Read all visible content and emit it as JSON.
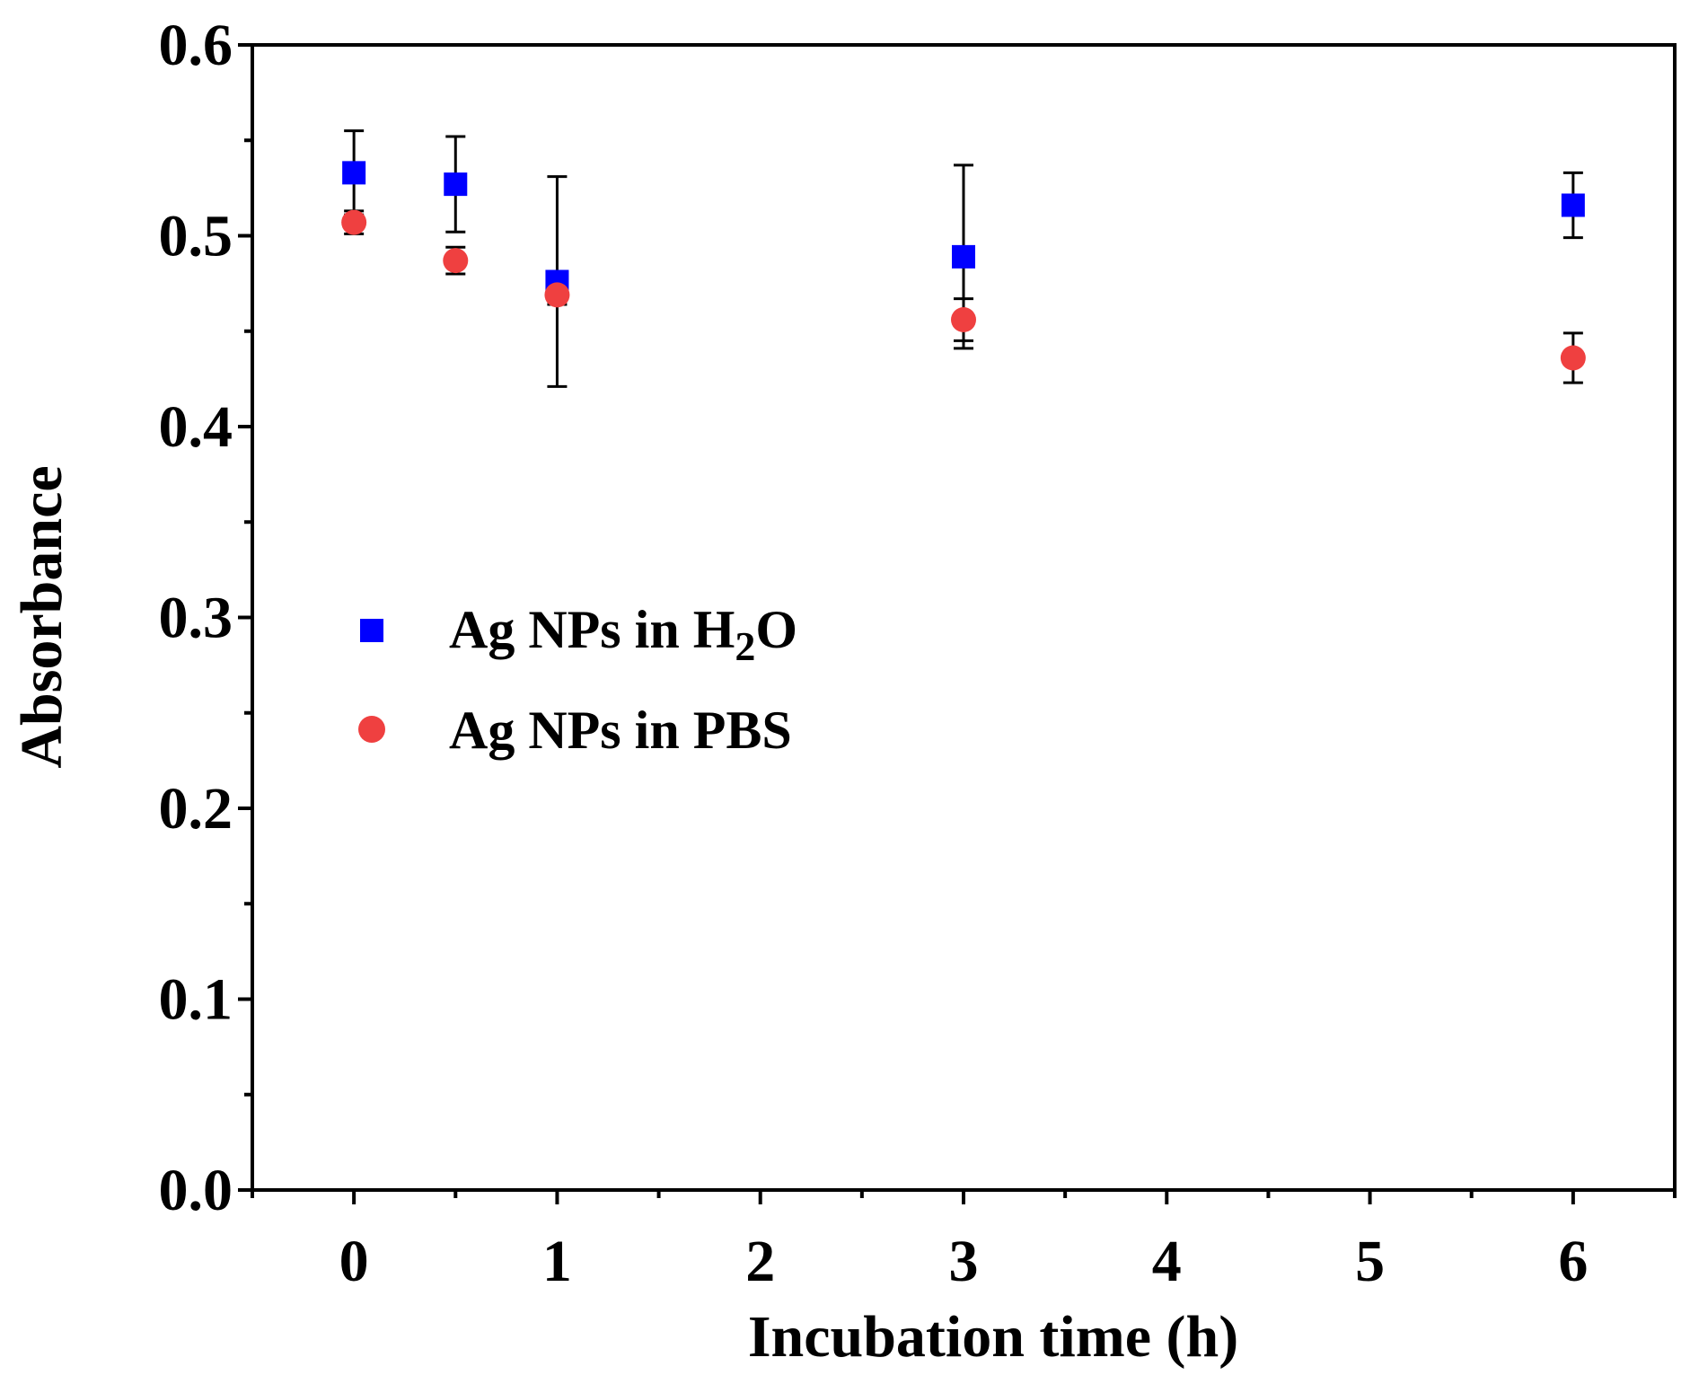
{
  "chart_data": {
    "type": "scatter",
    "title": "",
    "xlabel": "Incubation time (h)",
    "ylabel": "Absorbance",
    "xlim": [
      -0.5,
      6.5
    ],
    "ylim": [
      0.0,
      0.6
    ],
    "x_ticks": [
      0,
      1,
      2,
      3,
      4,
      5,
      6
    ],
    "x_tick_labels": [
      "0",
      "1",
      "2",
      "3",
      "4",
      "5",
      "6"
    ],
    "y_ticks": [
      0.0,
      0.1,
      0.2,
      0.3,
      0.4,
      0.5,
      0.6
    ],
    "y_tick_labels": [
      "0.0",
      "0.1",
      "0.2",
      "0.3",
      "0.4",
      "0.5",
      "0.6"
    ],
    "grid": false,
    "legend_position": "middle-left",
    "series": [
      {
        "name": "Ag NPs in H2O",
        "legend_label_main": "Ag NPs in H",
        "legend_label_sub": "2",
        "legend_label_tail": "O",
        "marker": "square",
        "color": "#0000ff",
        "x": [
          0,
          0.5,
          1,
          3,
          6
        ],
        "y": [
          0.533,
          0.527,
          0.476,
          0.489,
          0.516
        ],
        "error": [
          0.022,
          0.025,
          0.055,
          0.048,
          0.017
        ]
      },
      {
        "name": "Ag NPs in PBS",
        "legend_label_main": "Ag NPs in PBS",
        "marker": "circle",
        "color": "#ef4040",
        "x": [
          0,
          0.5,
          1,
          3,
          6
        ],
        "y": [
          0.507,
          0.487,
          0.469,
          0.456,
          0.436
        ],
        "error": [
          0.006,
          0.007,
          0.005,
          0.011,
          0.013
        ]
      }
    ]
  }
}
